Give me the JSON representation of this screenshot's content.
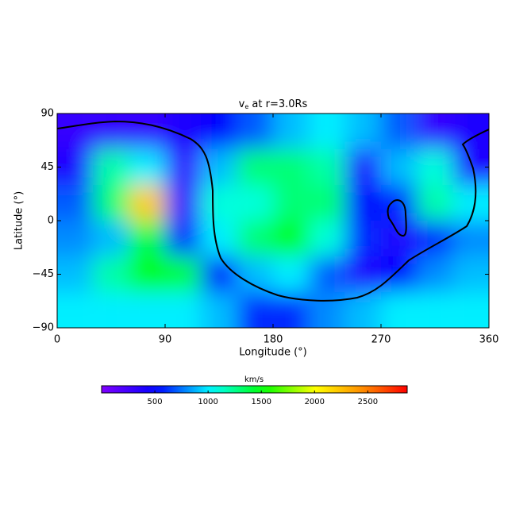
{
  "chart_data": {
    "type": "heatmap",
    "title": {
      "main": "v",
      "subscript": "e",
      "rest": " at r=3.0Rs"
    },
    "xlabel": "Longitude (°)",
    "ylabel": "Latitude (°)",
    "xlim": [
      0,
      360
    ],
    "xticks": [
      0,
      90,
      180,
      270,
      360
    ],
    "ylim": [
      -90,
      90
    ],
    "yticks": [
      {
        "value": -90,
        "label": "−90"
      },
      {
        "value": -45,
        "label": "−45"
      },
      0,
      45,
      90
    ],
    "x": [
      15,
      45,
      75,
      105,
      135,
      165,
      195,
      225,
      255,
      285,
      315,
      345
    ],
    "y": [
      75,
      45,
      15,
      -15,
      -45,
      -75
    ],
    "values": [
      [
        300,
        300,
        300,
        400,
        500,
        700,
        900,
        1000,
        900,
        700,
        300,
        400
      ],
      [
        400,
        1200,
        1000,
        300,
        900,
        1300,
        1300,
        1200,
        400,
        900,
        1100,
        400
      ],
      [
        700,
        1300,
        2200,
        300,
        1100,
        1100,
        1300,
        1300,
        500,
        600,
        1200,
        1000
      ],
      [
        800,
        900,
        1400,
        600,
        1000,
        1300,
        1500,
        1100,
        600,
        400,
        600,
        800
      ],
      [
        900,
        1200,
        1500,
        1400,
        500,
        900,
        1000,
        700,
        400,
        500,
        800,
        900
      ],
      [
        1000,
        1000,
        1000,
        1000,
        900,
        600,
        600,
        800,
        900,
        1000,
        1000,
        1000
      ]
    ],
    "colorbar": {
      "label": "km/s",
      "zlim": [
        0,
        2870
      ],
      "ticks": [
        500,
        1000,
        1500,
        2000,
        2500
      ]
    }
  }
}
